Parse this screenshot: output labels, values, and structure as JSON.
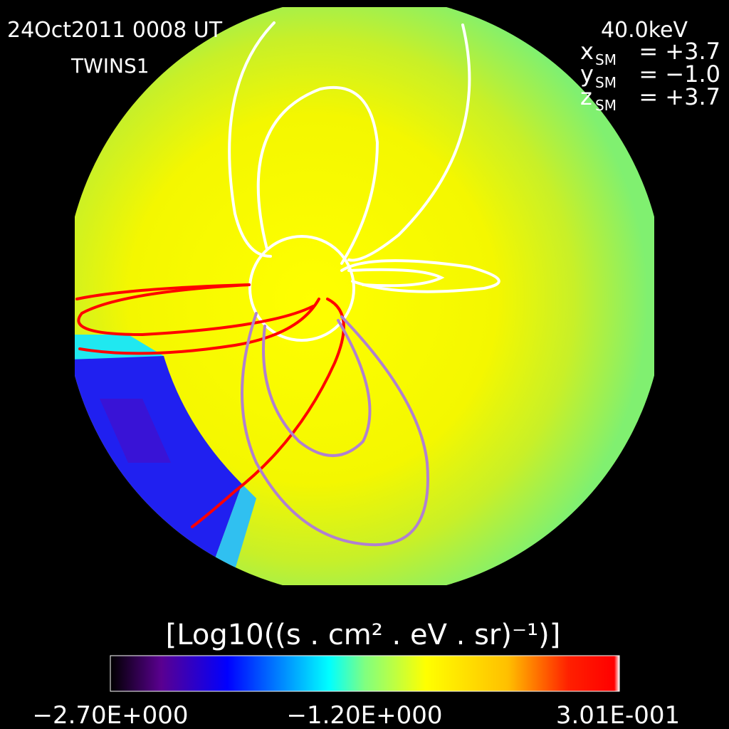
{
  "header": {
    "date": "24Oct2011 0008 UT",
    "spacecraft": "TWINS1",
    "energy": "40.0keV",
    "position": [
      {
        "var": "x",
        "sub": "SM",
        "value": "= +3.7"
      },
      {
        "var": "y",
        "sub": "SM",
        "value": "= −1.0"
      },
      {
        "var": "z",
        "sub": "SM",
        "value": "= +3.7"
      }
    ]
  },
  "colorbar": {
    "title": "[Log10((s . cm² . eV . sr)⁻¹)]",
    "labels": [
      "−2.70E+000",
      "−1.20E+000",
      "3.01E-001"
    ]
  }
}
